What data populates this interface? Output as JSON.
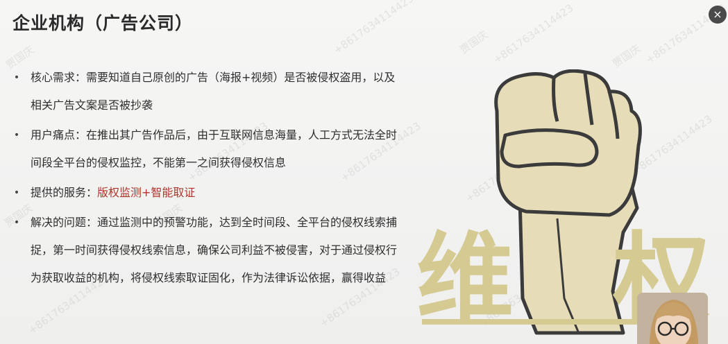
{
  "slide": {
    "title": "企业机构（广告公司）",
    "items": [
      {
        "text": "核心需求：需要知道自己原创的广告（海报+视频）是否被侵权盗用，以及相关广告文案是否被抄袭"
      },
      {
        "text": "用户痛点：在推出其广告作品后，由于互联网信息海量，人工方式无法全时间段全平台的侵权监控，不能第一之间获得侵权信息"
      },
      {
        "label": "提供的服务：",
        "highlight": "版权监测+智能取证"
      },
      {
        "text": "解决的问题：通过监测中的预警功能，达到全时间段、全平台的侵权线索捕捉，第一时间获得侵权线索信息，确保公司利益不被侵害，对于通过侵权行为获取收益的机构，将侵权线索取证固化，作为法律诉讼依据，赢得收益"
      }
    ],
    "artwork": {
      "chars": [
        "维",
        "权"
      ]
    }
  },
  "close_button": {
    "symbol": "×"
  },
  "watermarks": {
    "name": "贾国庆",
    "phone": "+8617634114423"
  },
  "colors": {
    "highlight": "#b0342a",
    "artwork_text": "#d6ca93",
    "fist": "#e6dcb7",
    "outline": "#3b3b3b"
  }
}
